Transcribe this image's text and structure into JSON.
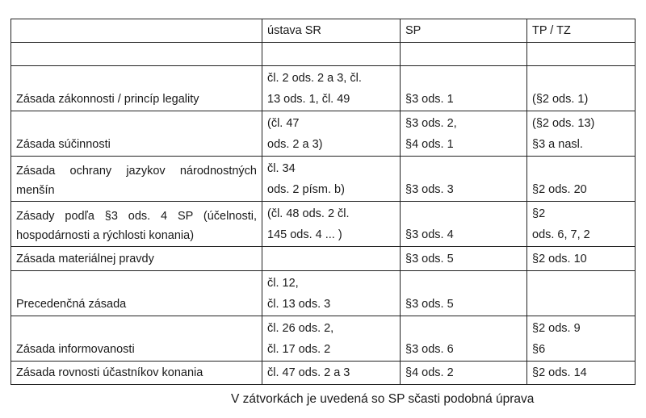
{
  "table": {
    "headers": [
      "",
      "ústava SR",
      "SP",
      "TP / TZ"
    ],
    "rows": [
      [
        "",
        "",
        "",
        ""
      ],
      [
        "Zásada zákonnosti / princíp legality",
        "čl. 2 ods. 2 a 3, čl.\n13 ods. 1,   čl. 49",
        "§3 ods. 1",
        "(§2 ods. 1)"
      ],
      [
        "Zásada súčinnosti",
        "(čl. 47\nods. 2 a 3)",
        "§3 ods. 2,\n§4 ods. 1",
        "(§2 ods. 13)\n§3 a nasl."
      ],
      [
        "Zásada ochrany jazykov národnostných menšín",
        "čl. 34\nods. 2 písm. b)",
        "§3 ods. 3",
        "§2 ods. 20"
      ],
      [
        "Zásady podľa §3 ods. 4 SP (účelnosti, hospodárnosti a rýchlosti konania)",
        "(čl. 48 ods. 2      čl.\n145 ods. 4 ... )",
        "§3 ods. 4",
        "§2\nods. 6, 7, 2"
      ],
      [
        "Zásada materiálnej pravdy",
        "",
        "§3 ods. 5",
        "§2 ods. 10"
      ],
      [
        "Precedenčná zásada",
        "čl. 12,\nčl. 13 ods. 3",
        "§3 ods. 5",
        ""
      ],
      [
        "Zásada informovanosti",
        "čl. 26 ods. 2,\nčl. 17 ods. 2",
        "§3 ods. 6",
        "§2 ods. 9\n§6"
      ],
      [
        "Zásada rovnosti účastníkov konania",
        "čl. 47 ods. 2 a 3",
        "§4 ods. 2",
        "§2 ods. 14"
      ]
    ]
  },
  "note": "V zátvorkách je uvedená so SP sčasti podobná úprava"
}
